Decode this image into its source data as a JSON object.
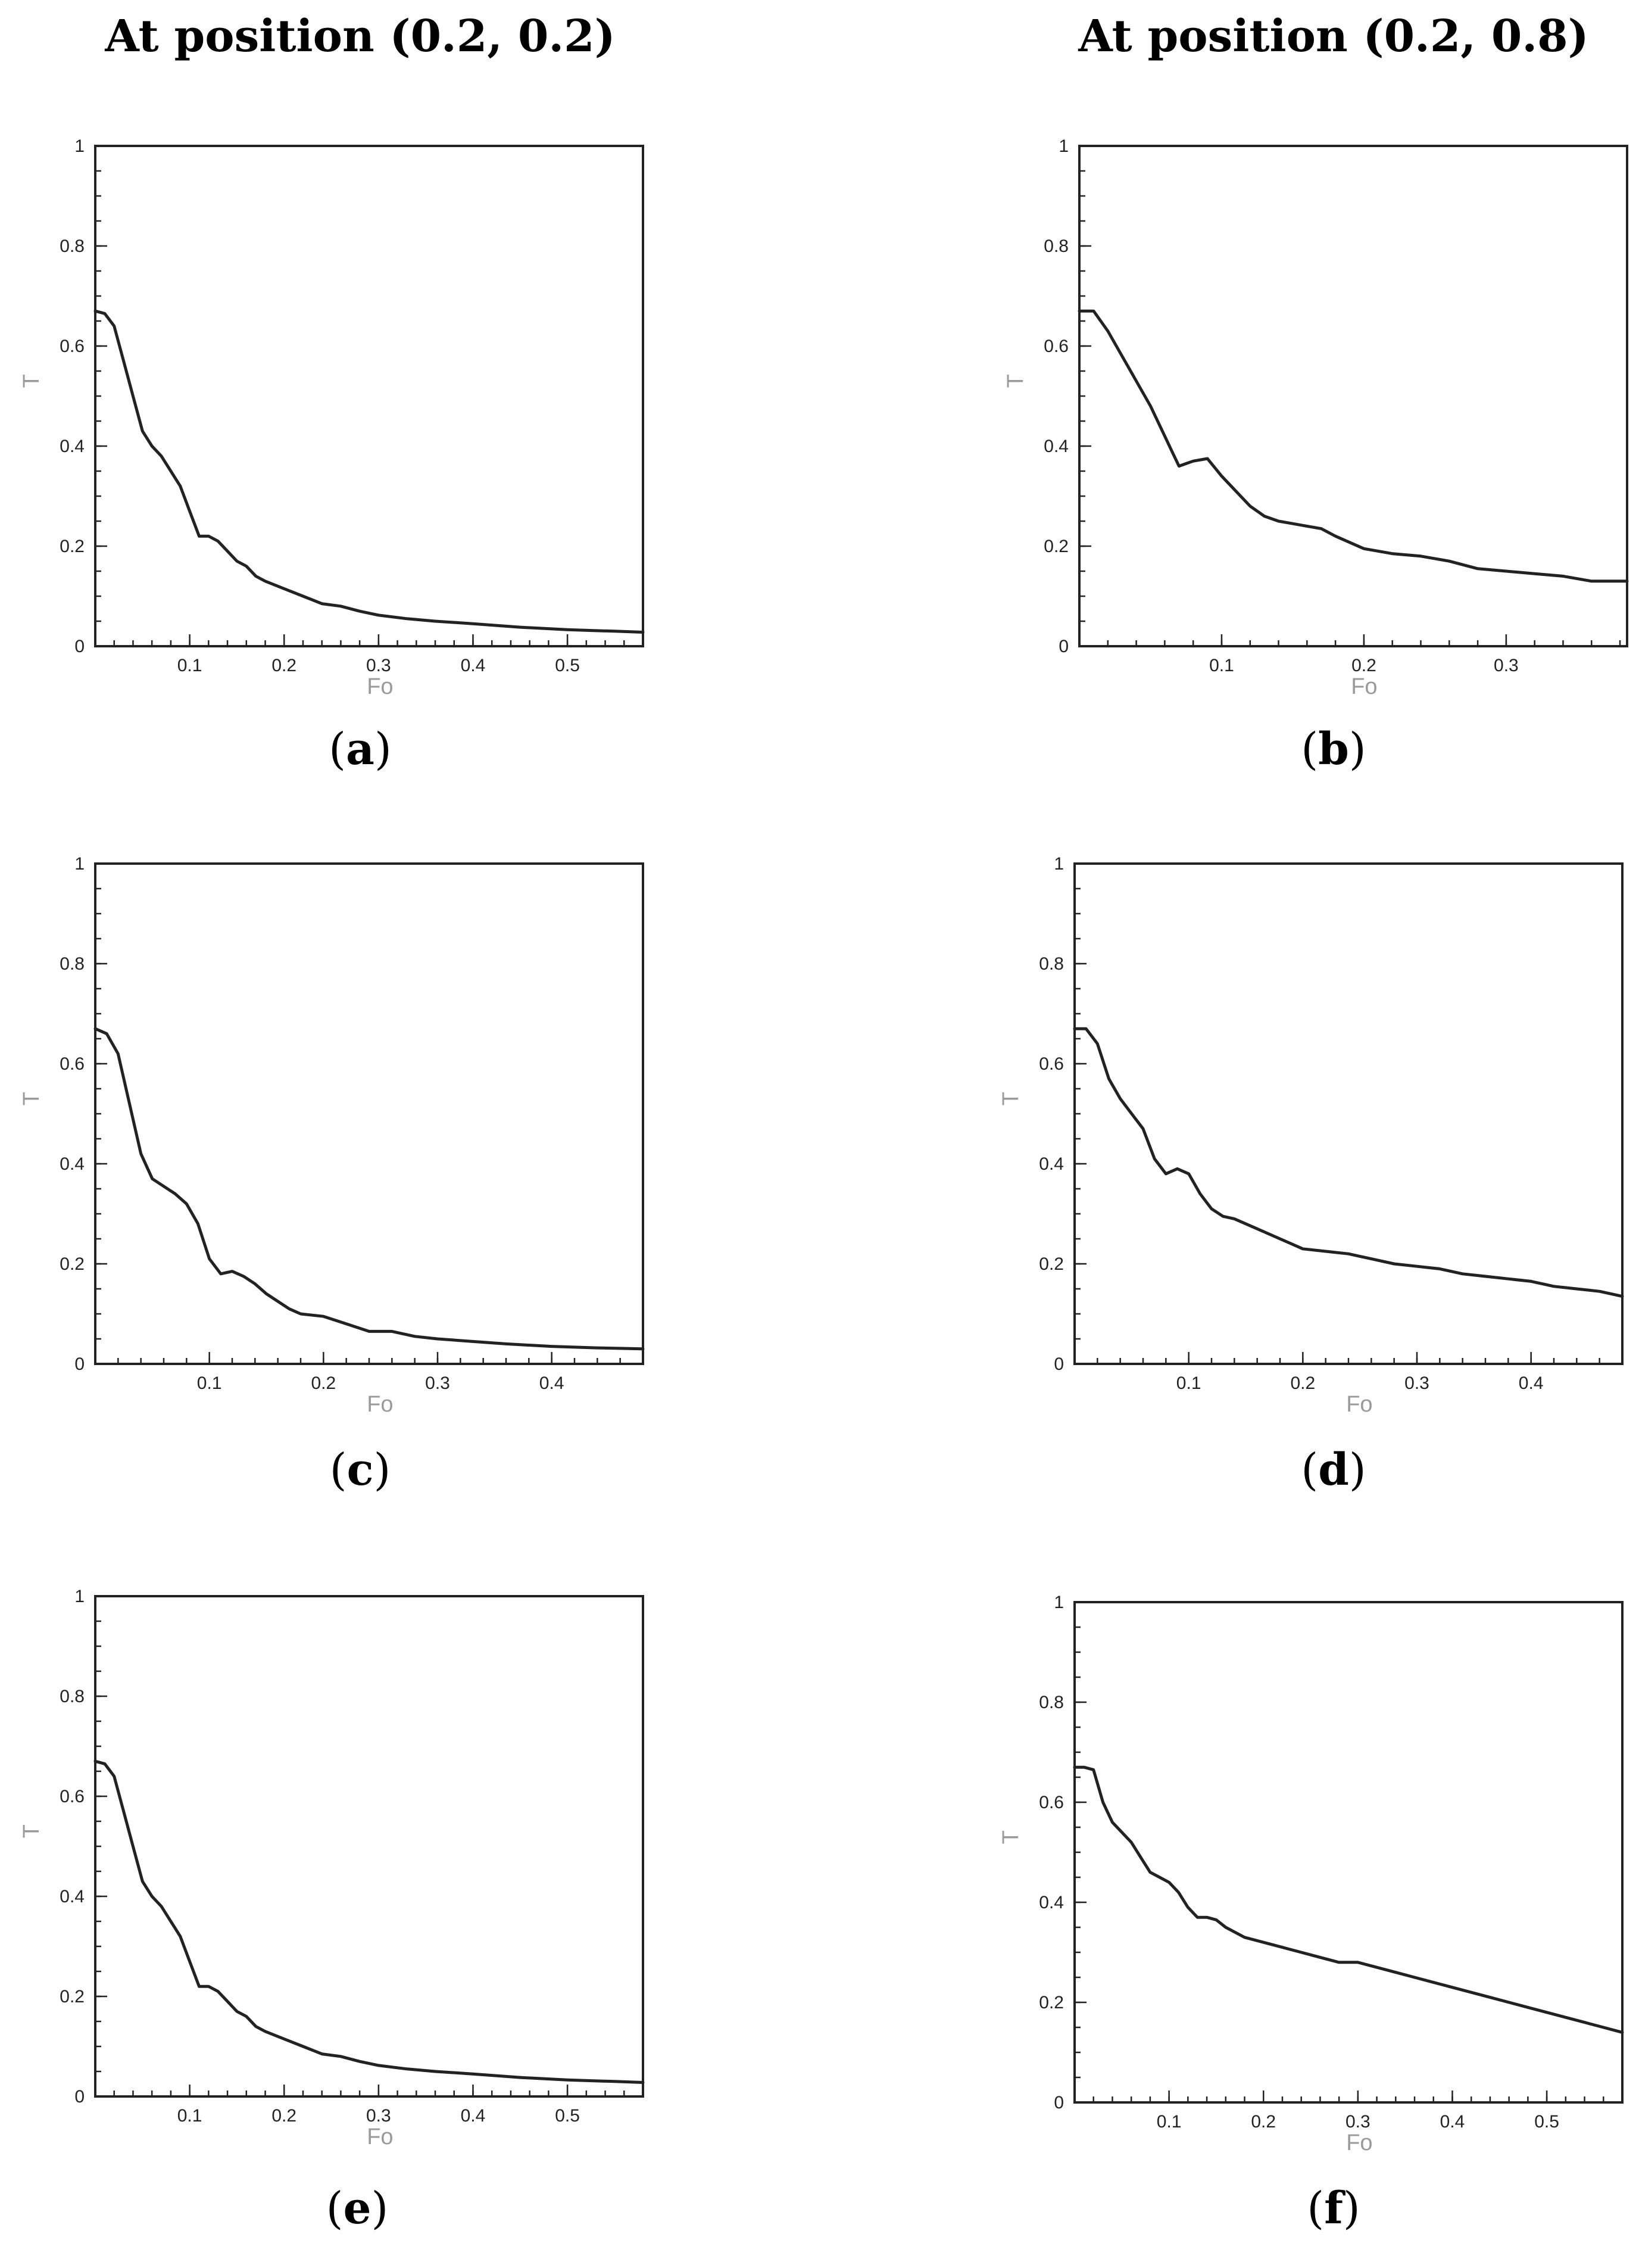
{
  "column_titles": {
    "left": "At position (0.2, 0.2)",
    "right": "At position (0.2, 0.8)"
  },
  "panel_labels": {
    "a": "a",
    "b": "b",
    "c": "c",
    "d": "d",
    "e": "e",
    "f": "f"
  },
  "chart_data": [
    {
      "id": "a",
      "type": "line",
      "xlabel": "Fo",
      "ylabel": "T",
      "xlim": [
        0,
        0.58
      ],
      "ylim": [
        0,
        1
      ],
      "xticks": [
        "0.1",
        "0.2",
        "0.3",
        "0.4",
        "0.5"
      ],
      "xtick_values": [
        0.1,
        0.2,
        0.3,
        0.4,
        0.5
      ],
      "yticks": [
        "0",
        "0.2",
        "0.4",
        "0.6",
        "0.8",
        "1"
      ],
      "ytick_values": [
        0,
        0.2,
        0.4,
        0.6,
        0.8,
        1
      ],
      "x": [
        0,
        0.01,
        0.02,
        0.03,
        0.04,
        0.05,
        0.06,
        0.07,
        0.08,
        0.09,
        0.1,
        0.11,
        0.12,
        0.13,
        0.14,
        0.15,
        0.16,
        0.17,
        0.18,
        0.2,
        0.22,
        0.24,
        0.26,
        0.28,
        0.3,
        0.33,
        0.36,
        0.4,
        0.45,
        0.5,
        0.55,
        0.58
      ],
      "y": [
        0.67,
        0.665,
        0.64,
        0.57,
        0.5,
        0.43,
        0.4,
        0.38,
        0.35,
        0.32,
        0.27,
        0.22,
        0.22,
        0.21,
        0.19,
        0.17,
        0.16,
        0.14,
        0.13,
        0.115,
        0.1,
        0.085,
        0.08,
        0.07,
        0.062,
        0.055,
        0.05,
        0.045,
        0.038,
        0.033,
        0.03,
        0.028
      ]
    },
    {
      "id": "b",
      "type": "line",
      "xlabel": "Fo",
      "ylabel": "T",
      "xlim": [
        0,
        0.385
      ],
      "ylim": [
        0,
        1
      ],
      "xticks": [
        "0.1",
        "0.2",
        "0.3"
      ],
      "xtick_values": [
        0.1,
        0.2,
        0.3
      ],
      "yticks": [
        "0",
        "0.2",
        "0.4",
        "0.6",
        "0.8",
        "1"
      ],
      "ytick_values": [
        0,
        0.2,
        0.4,
        0.6,
        0.8,
        1
      ],
      "x": [
        0,
        0.01,
        0.02,
        0.03,
        0.04,
        0.05,
        0.06,
        0.065,
        0.07,
        0.075,
        0.08,
        0.09,
        0.1,
        0.11,
        0.12,
        0.13,
        0.14,
        0.15,
        0.16,
        0.17,
        0.18,
        0.2,
        0.22,
        0.24,
        0.26,
        0.28,
        0.3,
        0.32,
        0.34,
        0.36,
        0.385
      ],
      "y": [
        0.67,
        0.67,
        0.63,
        0.58,
        0.53,
        0.48,
        0.42,
        0.39,
        0.36,
        0.365,
        0.37,
        0.375,
        0.34,
        0.31,
        0.28,
        0.26,
        0.25,
        0.245,
        0.24,
        0.235,
        0.22,
        0.195,
        0.185,
        0.18,
        0.17,
        0.155,
        0.15,
        0.145,
        0.14,
        0.13,
        0.13
      ]
    },
    {
      "id": "c",
      "type": "line",
      "xlabel": "Fo",
      "ylabel": "T",
      "xlim": [
        0,
        0.48
      ],
      "ylim": [
        0,
        1
      ],
      "xticks": [
        "0.1",
        "0.2",
        "0.3",
        "0.4"
      ],
      "xtick_values": [
        0.1,
        0.2,
        0.3,
        0.4
      ],
      "yticks": [
        "0",
        "0.2",
        "0.4",
        "0.6",
        "0.8",
        "1"
      ],
      "ytick_values": [
        0,
        0.2,
        0.4,
        0.6,
        0.8,
        1
      ],
      "x": [
        0,
        0.01,
        0.02,
        0.03,
        0.04,
        0.05,
        0.06,
        0.07,
        0.08,
        0.09,
        0.1,
        0.11,
        0.12,
        0.13,
        0.14,
        0.15,
        0.16,
        0.17,
        0.18,
        0.2,
        0.22,
        0.24,
        0.26,
        0.28,
        0.3,
        0.33,
        0.36,
        0.4,
        0.44,
        0.48
      ],
      "y": [
        0.67,
        0.66,
        0.62,
        0.52,
        0.42,
        0.37,
        0.355,
        0.34,
        0.32,
        0.28,
        0.21,
        0.18,
        0.185,
        0.175,
        0.16,
        0.14,
        0.125,
        0.11,
        0.1,
        0.095,
        0.08,
        0.065,
        0.065,
        0.055,
        0.05,
        0.045,
        0.04,
        0.035,
        0.032,
        0.03
      ]
    },
    {
      "id": "d",
      "type": "line",
      "xlabel": "Fo",
      "ylabel": "T",
      "xlim": [
        0,
        0.48
      ],
      "ylim": [
        0,
        1
      ],
      "xticks": [
        "0.1",
        "0.2",
        "0.3",
        "0.4"
      ],
      "xtick_values": [
        0.1,
        0.2,
        0.3,
        0.4
      ],
      "yticks": [
        "0",
        "0.2",
        "0.4",
        "0.6",
        "0.8",
        "1"
      ],
      "ytick_values": [
        0,
        0.2,
        0.4,
        0.6,
        0.8,
        1
      ],
      "x": [
        0,
        0.01,
        0.02,
        0.03,
        0.04,
        0.05,
        0.06,
        0.07,
        0.08,
        0.09,
        0.1,
        0.11,
        0.12,
        0.13,
        0.14,
        0.15,
        0.16,
        0.18,
        0.2,
        0.22,
        0.24,
        0.26,
        0.28,
        0.3,
        0.32,
        0.34,
        0.36,
        0.38,
        0.4,
        0.42,
        0.44,
        0.46,
        0.48
      ],
      "y": [
        0.67,
        0.67,
        0.64,
        0.57,
        0.53,
        0.5,
        0.47,
        0.41,
        0.38,
        0.39,
        0.38,
        0.34,
        0.31,
        0.295,
        0.29,
        0.28,
        0.27,
        0.25,
        0.23,
        0.225,
        0.22,
        0.21,
        0.2,
        0.195,
        0.19,
        0.18,
        0.175,
        0.17,
        0.165,
        0.155,
        0.15,
        0.145,
        0.135
      ]
    },
    {
      "id": "e",
      "type": "line",
      "xlabel": "Fo",
      "ylabel": "T",
      "xlim": [
        0,
        0.58
      ],
      "ylim": [
        0,
        1
      ],
      "xticks": [
        "0.1",
        "0.2",
        "0.3",
        "0.4",
        "0.5"
      ],
      "xtick_values": [
        0.1,
        0.2,
        0.3,
        0.4,
        0.5
      ],
      "yticks": [
        "0",
        "0.2",
        "0.4",
        "0.6",
        "0.8",
        "1"
      ],
      "ytick_values": [
        0,
        0.2,
        0.4,
        0.6,
        0.8,
        1
      ],
      "x": [
        0,
        0.01,
        0.02,
        0.03,
        0.04,
        0.05,
        0.06,
        0.07,
        0.08,
        0.09,
        0.1,
        0.11,
        0.12,
        0.13,
        0.14,
        0.15,
        0.16,
        0.17,
        0.18,
        0.2,
        0.22,
        0.24,
        0.26,
        0.28,
        0.3,
        0.33,
        0.36,
        0.4,
        0.45,
        0.5,
        0.55,
        0.58
      ],
      "y": [
        0.67,
        0.665,
        0.64,
        0.57,
        0.5,
        0.43,
        0.4,
        0.38,
        0.35,
        0.32,
        0.27,
        0.22,
        0.22,
        0.21,
        0.19,
        0.17,
        0.16,
        0.14,
        0.13,
        0.115,
        0.1,
        0.085,
        0.08,
        0.07,
        0.062,
        0.055,
        0.05,
        0.045,
        0.038,
        0.033,
        0.03,
        0.028
      ]
    },
    {
      "id": "f",
      "type": "line",
      "xlabel": "Fo",
      "ylabel": "T",
      "xlim": [
        0,
        0.58
      ],
      "ylim": [
        0,
        1
      ],
      "xticks": [
        "0.1",
        "0.2",
        "0.3",
        "0.4",
        "0.5"
      ],
      "xtick_values": [
        0.1,
        0.2,
        0.3,
        0.4,
        0.5
      ],
      "yticks": [
        "0",
        "0.2",
        "0.4",
        "0.6",
        "0.8",
        "1"
      ],
      "ytick_values": [
        0,
        0.2,
        0.4,
        0.6,
        0.8,
        1
      ],
      "x": [
        0,
        0.01,
        0.02,
        0.03,
        0.04,
        0.05,
        0.06,
        0.07,
        0.08,
        0.09,
        0.1,
        0.11,
        0.12,
        0.13,
        0.14,
        0.15,
        0.16,
        0.18,
        0.2,
        0.22,
        0.24,
        0.26,
        0.28,
        0.3,
        0.32,
        0.34,
        0.36,
        0.38,
        0.4,
        0.42,
        0.44,
        0.46,
        0.48,
        0.5,
        0.52,
        0.54,
        0.56,
        0.58
      ],
      "y": [
        0.67,
        0.67,
        0.665,
        0.6,
        0.56,
        0.54,
        0.52,
        0.49,
        0.46,
        0.45,
        0.44,
        0.42,
        0.39,
        0.37,
        0.37,
        0.365,
        0.35,
        0.33,
        0.32,
        0.31,
        0.3,
        0.29,
        0.28,
        0.28,
        0.27,
        0.26,
        0.25,
        0.24,
        0.23,
        0.22,
        0.21,
        0.2,
        0.19,
        0.18,
        0.17,
        0.16,
        0.15,
        0.14
      ]
    }
  ]
}
